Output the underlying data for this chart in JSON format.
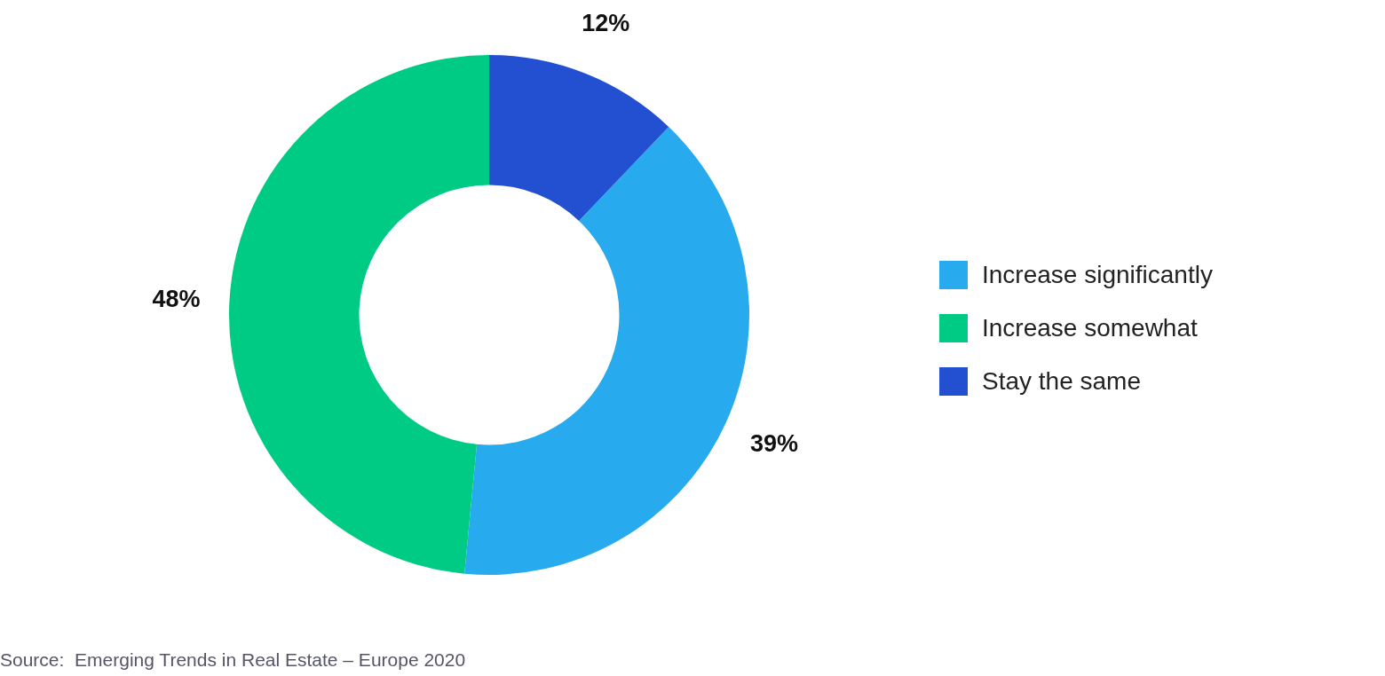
{
  "chart_data": {
    "type": "donut",
    "categories": [
      "Increase significantly",
      "Increase somewhat",
      "Stay the same"
    ],
    "values": [
      39,
      48,
      12
    ],
    "colors": [
      "#27aaee",
      "#00cb85",
      "#2250d0"
    ],
    "value_labels": [
      "39%",
      "48%",
      "12%"
    ],
    "legend": "right",
    "annotations": [
      "Source:  Emerging Trends in Real Estate – Europe 2020"
    ]
  }
}
